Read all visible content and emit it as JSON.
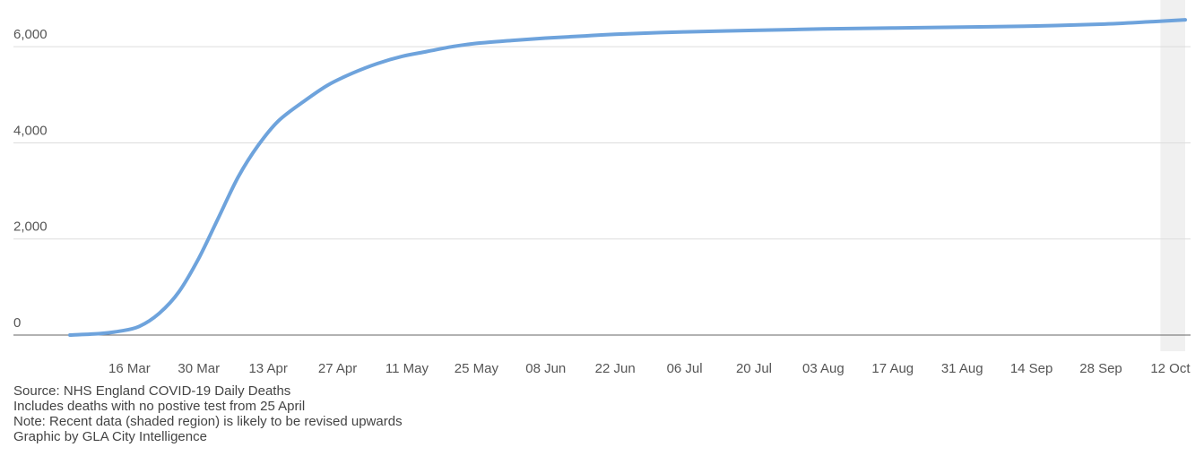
{
  "chart_data": {
    "type": "line",
    "title": "",
    "xlabel": "",
    "ylabel": "",
    "ylim": [
      0,
      6600
    ],
    "y_ticks": [
      0,
      2000,
      4000,
      6000
    ],
    "y_tick_labels": [
      "0",
      "2,000",
      "4,000",
      "6,000"
    ],
    "x_tick_labels": [
      "16 Mar",
      "30 Mar",
      "13 Apr",
      "27 Apr",
      "11 May",
      "25 May",
      "08 Jun",
      "22 Jun",
      "06 Jul",
      "20 Jul",
      "03 Aug",
      "17 Aug",
      "31 Aug",
      "14 Sep",
      "28 Sep",
      "12 Oct"
    ],
    "x_ticks": [
      "2020-03-16",
      "2020-03-30",
      "2020-04-13",
      "2020-04-27",
      "2020-05-11",
      "2020-05-25",
      "2020-06-08",
      "2020-06-22",
      "2020-07-06",
      "2020-07-20",
      "2020-08-03",
      "2020-08-17",
      "2020-08-31",
      "2020-09-14",
      "2020-09-28",
      "2020-10-12"
    ],
    "xlim": [
      "2020-03-04",
      "2020-10-15"
    ],
    "shaded_region": [
      "2020-10-10",
      "2020-10-15"
    ],
    "grid": true,
    "series": [
      {
        "color": "#6ea3dc",
        "points": [
          [
            "2020-03-04",
            0
          ],
          [
            "2020-03-10",
            30
          ],
          [
            "2020-03-14",
            80
          ],
          [
            "2020-03-18",
            180
          ],
          [
            "2020-03-22",
            450
          ],
          [
            "2020-03-26",
            900
          ],
          [
            "2020-03-30",
            1600
          ],
          [
            "2020-04-03",
            2450
          ],
          [
            "2020-04-07",
            3300
          ],
          [
            "2020-04-11",
            3950
          ],
          [
            "2020-04-15",
            4450
          ],
          [
            "2020-04-20",
            4850
          ],
          [
            "2020-04-25",
            5200
          ],
          [
            "2020-04-30",
            5450
          ],
          [
            "2020-05-05",
            5650
          ],
          [
            "2020-05-10",
            5800
          ],
          [
            "2020-05-15",
            5900
          ],
          [
            "2020-05-20",
            6000
          ],
          [
            "2020-05-25",
            6070
          ],
          [
            "2020-06-01",
            6130
          ],
          [
            "2020-06-08",
            6180
          ],
          [
            "2020-06-15",
            6220
          ],
          [
            "2020-06-22",
            6260
          ],
          [
            "2020-07-06",
            6310
          ],
          [
            "2020-07-20",
            6340
          ],
          [
            "2020-08-03",
            6370
          ],
          [
            "2020-08-17",
            6390
          ],
          [
            "2020-08-31",
            6410
          ],
          [
            "2020-09-14",
            6430
          ],
          [
            "2020-09-28",
            6470
          ],
          [
            "2020-10-08",
            6520
          ],
          [
            "2020-10-15",
            6560
          ]
        ]
      }
    ]
  },
  "notes": {
    "source": "Source: NHS England COVID-19 Daily Deaths",
    "line2": "Includes deaths with no postive test from 25 April",
    "line3": "Note: Recent data (shaded region) is likely to be revised upwards",
    "line4": "Graphic by GLA City Intelligence"
  },
  "colors": {
    "line": "#6ea3dc",
    "grid": "#dddddd",
    "axis": "#555555",
    "shade": "#f0f0f0"
  }
}
